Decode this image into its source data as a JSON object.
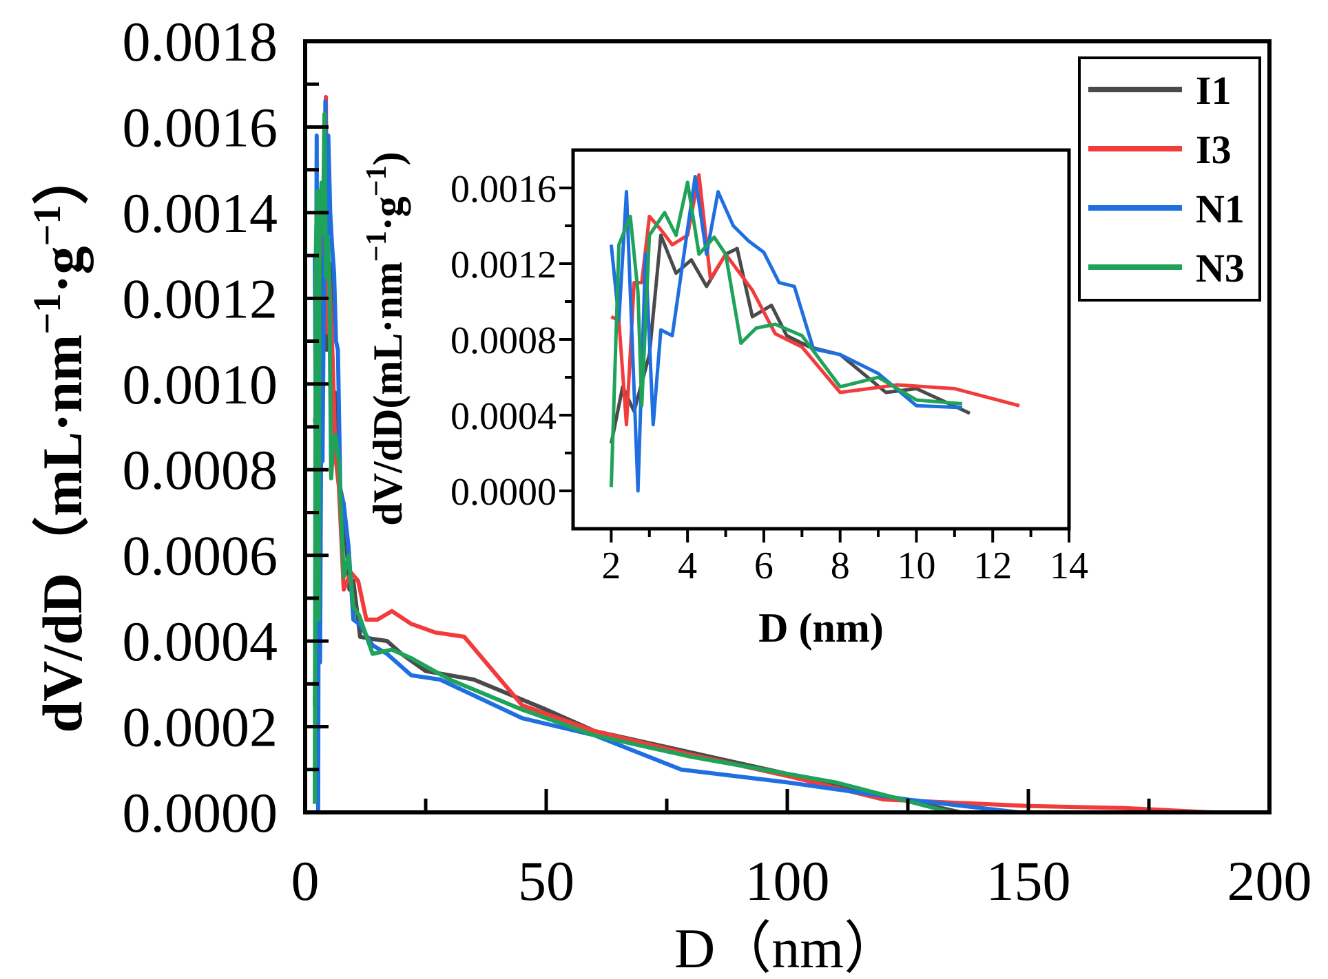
{
  "chart_data": {
    "type": "line",
    "xlabel": "D（nm）",
    "ylabel": "dV/dD（mL·nm⁻¹·g⁻¹）",
    "ylabel_parts": {
      "main": "dV/dD（mL·nm",
      "sup1": "−1",
      "mid": "·g",
      "sup2": "−1",
      "end": "）"
    },
    "xlim": [
      0,
      200
    ],
    "ylim": [
      0,
      0.0018
    ],
    "x_ticks": [
      0,
      50,
      100,
      150,
      200
    ],
    "x_tick_labels": [
      "0",
      "50",
      "100",
      "150",
      "200"
    ],
    "y_ticks": [
      0,
      0.0002,
      0.0004,
      0.0006,
      0.0008,
      0.001,
      0.0012,
      0.0014,
      0.0016,
      0.0018
    ],
    "y_tick_labels": [
      "0.0000",
      "0.0002",
      "0.0004",
      "0.0006",
      "0.0008",
      "0.0010",
      "0.0012",
      "0.0014",
      "0.0016",
      "0.0018"
    ],
    "legend": {
      "position": "top-right",
      "entries": [
        "I1",
        "I3",
        "N1",
        "N3"
      ]
    },
    "series": [
      {
        "name": "I1",
        "color": "#4a4a4a",
        "x": [
          2.0,
          2.3,
          2.6,
          3.0,
          3.3,
          3.7,
          4.1,
          4.5,
          5.0,
          5.3,
          5.7,
          6.2,
          6.6,
          7.2,
          8.0,
          9.2,
          10.0,
          11.4,
          14,
          17,
          20,
          25,
          35,
          50,
          60,
          80,
          100,
          120,
          136
        ],
        "y": [
          0.00025,
          0.00055,
          0.00042,
          0.00072,
          0.00135,
          0.00115,
          0.00122,
          0.00108,
          0.00125,
          0.00128,
          0.00092,
          0.00098,
          0.00082,
          0.00076,
          0.00072,
          0.00052,
          0.00054,
          0.00041,
          0.000405,
          0.0004,
          0.00037,
          0.00033,
          0.00031,
          0.00024,
          0.00019,
          0.00014,
          9e-05,
          4e-05,
          0.0
        ]
      },
      {
        "name": "I3",
        "color": "#f23c3c",
        "x": [
          2.0,
          2.2,
          2.4,
          2.6,
          2.8,
          3.0,
          3.3,
          3.6,
          4.0,
          4.3,
          4.6,
          5.0,
          5.7,
          6.3,
          7.0,
          8.0,
          9.5,
          11.0,
          12.7,
          15,
          18,
          22,
          27,
          33,
          45,
          60,
          80,
          100,
          120,
          150,
          170,
          188
        ],
        "y": [
          0.00092,
          0.0009,
          0.00035,
          0.0011,
          0.0011,
          0.00145,
          0.00138,
          0.0013,
          0.00135,
          0.00167,
          0.00112,
          0.00125,
          0.00106,
          0.00083,
          0.00076,
          0.00052,
          0.00056,
          0.00054,
          0.00045,
          0.00045,
          0.00047,
          0.00044,
          0.00042,
          0.00041,
          0.00025,
          0.00019,
          0.000135,
          8.5e-05,
          3e-05,
          1.5e-05,
          1e-05,
          0.0
        ]
      },
      {
        "name": "N1",
        "color": "#1f6fe0",
        "x": [
          2.0,
          2.2,
          2.4,
          2.5,
          2.7,
          2.9,
          3.1,
          3.3,
          3.6,
          4.2,
          4.5,
          4.8,
          5.2,
          5.6,
          6.0,
          6.4,
          6.8,
          7.3,
          8.0,
          9.0,
          10.0,
          11.2,
          14,
          17,
          22,
          28,
          45,
          60,
          78,
          100,
          125,
          148
        ],
        "y": [
          0.0013,
          0.0009,
          0.00158,
          0.00105,
          0.0,
          0.00125,
          0.00035,
          0.00085,
          0.00082,
          0.00166,
          0.00125,
          0.00158,
          0.0014,
          0.00132,
          0.00126,
          0.0011,
          0.00108,
          0.00075,
          0.00072,
          0.00062,
          0.00045,
          0.00044,
          0.00039,
          0.00037,
          0.00032,
          0.00031,
          0.00022,
          0.00018,
          0.0001,
          7e-05,
          3e-05,
          0.0
        ]
      },
      {
        "name": "N3",
        "color": "#1fa35a",
        "x": [
          2.0,
          2.2,
          2.5,
          2.7,
          2.8,
          3.0,
          3.4,
          3.7,
          4.0,
          4.3,
          4.7,
          5.0,
          5.4,
          5.8,
          6.3,
          7.0,
          8.0,
          9.0,
          10.0,
          11.2,
          14,
          18,
          22,
          30,
          45,
          60,
          80,
          110,
          134
        ],
        "y": [
          2e-05,
          0.0013,
          0.00145,
          0.00105,
          0.00045,
          0.00135,
          0.00147,
          0.00135,
          0.00163,
          0.00125,
          0.00134,
          0.00125,
          0.00078,
          0.00086,
          0.00088,
          0.00082,
          0.00055,
          0.0006,
          0.00048,
          0.00046,
          0.00037,
          0.00038,
          0.00036,
          0.00031,
          0.00024,
          0.00018,
          0.00013,
          7e-05,
          0.0
        ]
      }
    ],
    "inset": {
      "xlabel": "D (nm)",
      "ylabel_parts": {
        "main": "dV/dD(mL·nm",
        "sup1": "−1",
        "mid": "·g",
        "sup2": "−1",
        "end": ")"
      },
      "xlim": [
        1,
        14
      ],
      "ylim": [
        -0.0002,
        0.0018
      ],
      "x_ticks": [
        2,
        4,
        6,
        8,
        10,
        12,
        14
      ],
      "x_tick_labels": [
        "2",
        "4",
        "6",
        "8",
        "10",
        "12",
        "14"
      ],
      "y_ticks": [
        0,
        0.0004,
        0.0008,
        0.0012,
        0.0016
      ],
      "y_tick_labels": [
        "0.0000",
        "0.0004",
        "0.0008",
        "0.0012",
        "0.0016"
      ]
    }
  }
}
